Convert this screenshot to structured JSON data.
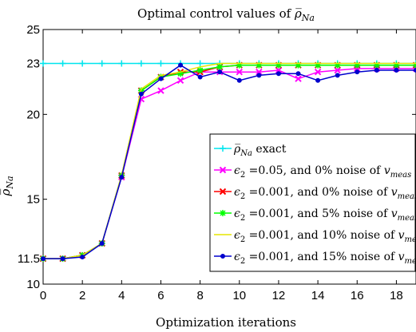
{
  "chart_data": {
    "type": "line",
    "title_prefix": "Optimal control values of ",
    "title_math": "ρ̅",
    "title_sub": "Na",
    "xlabel": "Optimization iterations",
    "ylabel_math": "ρ̅",
    "ylabel_sub": "Na",
    "xlim": [
      0,
      19
    ],
    "ylim": [
      10,
      25
    ],
    "xticks": [
      "0",
      "2",
      "4",
      "6",
      "8",
      "10",
      "12",
      "14",
      "16",
      "18"
    ],
    "yticks": [
      "10",
      "11.5",
      "15",
      "20",
      "23",
      "25"
    ],
    "grid": false,
    "legend_position": "right",
    "x": [
      0,
      1,
      2,
      3,
      4,
      5,
      6,
      7,
      8,
      9,
      10,
      11,
      12,
      13,
      14,
      15,
      16,
      17,
      18,
      19
    ],
    "series": [
      {
        "name_math": "ρ̅",
        "name_sub": "Na",
        "name_text": " exact",
        "color": "#00e5ee",
        "marker": "plus",
        "values": [
          23,
          23,
          23,
          23,
          23,
          23,
          23,
          23,
          23,
          23,
          23,
          23,
          23,
          23,
          23,
          23,
          23,
          23,
          23,
          23
        ]
      },
      {
        "name_pre": "ϵ",
        "name_pre_sub": "2",
        "name_text": " =0.05, and 0% noise of ",
        "name_var": "v",
        "name_var_sub": "meas",
        "color": "#ff00ff",
        "marker": "x",
        "values": [
          11.5,
          11.5,
          11.7,
          12.4,
          16.3,
          20.9,
          21.4,
          22.0,
          22.5,
          22.5,
          22.5,
          22.5,
          22.6,
          22.1,
          22.5,
          22.6,
          22.7,
          22.7,
          22.7,
          22.7
        ]
      },
      {
        "name_pre": "ϵ",
        "name_pre_sub": "2",
        "name_text": " =0.001, and 0% noise of ",
        "name_var": "v",
        "name_var_sub": "meas",
        "color": "#ff0000",
        "marker": "x",
        "values": [
          11.5,
          11.5,
          11.7,
          12.4,
          16.4,
          21.4,
          22.2,
          22.5,
          22.5,
          22.8,
          22.9,
          22.9,
          22.9,
          22.9,
          22.9,
          22.9,
          22.9,
          22.9,
          22.9,
          22.9
        ]
      },
      {
        "name_pre": "ϵ",
        "name_pre_sub": "2",
        "name_text": " =0.001, and 5% noise of ",
        "name_var": "v",
        "name_var_sub": "meas",
        "color": "#00ff00",
        "marker": "star",
        "values": [
          11.5,
          11.5,
          11.7,
          12.4,
          16.4,
          21.4,
          22.2,
          22.4,
          22.6,
          22.8,
          22.9,
          22.9,
          22.9,
          22.9,
          22.9,
          22.9,
          22.9,
          22.9,
          22.9,
          22.9
        ]
      },
      {
        "name_pre": "ϵ",
        "name_pre_sub": "2",
        "name_text": " =0.001, and 10% noise of ",
        "name_var": "v",
        "name_var_sub": "meas",
        "color": "#e6e600",
        "marker": "none",
        "values": [
          11.5,
          11.5,
          11.7,
          12.4,
          16.4,
          21.5,
          22.3,
          22.5,
          22.8,
          23.0,
          23.0,
          23.0,
          23.0,
          23.0,
          23.0,
          23.0,
          23.0,
          23.0,
          23.0,
          23.0
        ]
      },
      {
        "name_pre": "ϵ",
        "name_pre_sub": "2",
        "name_text": " =0.001, and 15% noise of ",
        "name_var": "v",
        "name_var_sub": "meas",
        "color": "#0000cd",
        "marker": "dot",
        "values": [
          11.5,
          11.5,
          11.6,
          12.4,
          16.3,
          21.2,
          22.1,
          22.9,
          22.2,
          22.5,
          22.0,
          22.3,
          22.4,
          22.4,
          22.0,
          22.3,
          22.5,
          22.6,
          22.6,
          22.6
        ]
      }
    ]
  }
}
